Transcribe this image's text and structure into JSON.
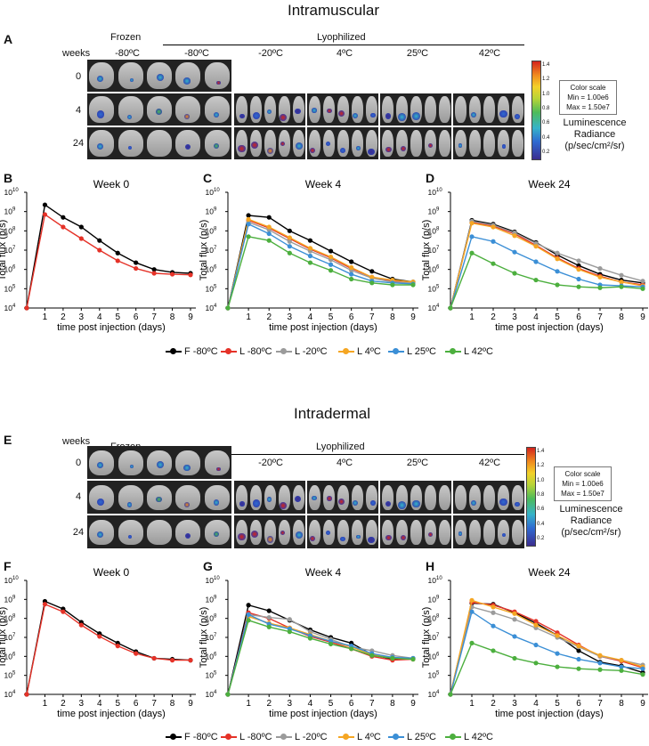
{
  "sections": {
    "top_title": "Intramuscular",
    "bottom_title": "Intradermal"
  },
  "panel_letters": {
    "A": "A",
    "B": "B",
    "C": "C",
    "D": "D",
    "E": "E",
    "F": "F",
    "G": "G",
    "H": "H"
  },
  "imaging": {
    "weeks_label": "weeks",
    "frozen_label": "Frozen",
    "lyophilized_label": "Lyophilized",
    "frozen_temp": "-80ºC",
    "lyo_temps": [
      "-80ºC",
      "-20ºC",
      "4ºC",
      "25ºC",
      "42ºC"
    ],
    "weeks": [
      "0",
      "4",
      "24"
    ],
    "colorbox_top": {
      "title": "Color scale",
      "min": "Min = 1.00e6",
      "max": "Max = 1.50e7"
    },
    "colorbox_bottom": {
      "title": "Color scale",
      "min": "Min = 1.00e6",
      "max": "Max = 1.50e7"
    },
    "colorbar_ticks": [
      "1.4",
      "1.2",
      "1.0",
      "0.8",
      "0.6",
      "0.4",
      "0.2"
    ],
    "lumi_label": "Luminescence",
    "radiance_label": "Radiance",
    "unit_label": "(p/sec/cm²/sr)"
  },
  "legend": {
    "top": [
      "F -80ºC",
      "L -80ºC",
      "L -20ºC",
      "L 4ºC",
      "L 25ºC",
      "L 42ºC"
    ],
    "bottom": [
      "F -80ºC",
      "L -80ºC",
      "L -20ºC",
      "L 4ºC",
      "L 25ºC",
      "L 42ºC"
    ]
  },
  "colors": {
    "F_-80": "#000000",
    "L_-80": "#e53228",
    "L_-20": "#9b9b9b",
    "L_4": "#f5a623",
    "L_25": "#3b8fd6",
    "L_42": "#4caf3e"
  },
  "chart_data": [
    {
      "id": "B",
      "type": "line",
      "title": "Week 0",
      "xlabel": "time post injection (days)",
      "ylabel": "Total flux (p/s)",
      "yscale": "log",
      "ylim_exp": [
        4,
        10
      ],
      "x": [
        0,
        1,
        2,
        3,
        4,
        5,
        6,
        7,
        8,
        9
      ],
      "x_ticks": [
        "1",
        "2",
        "3",
        "4",
        "5",
        "6",
        "7",
        "8",
        "9"
      ],
      "y_ticks": [
        "10",
        "10",
        "10",
        "10",
        "10",
        "10",
        "10"
      ],
      "y_tick_exps": [
        "4",
        "5",
        "6",
        "7",
        "8",
        "9",
        "10"
      ],
      "series": [
        {
          "name": "F -80ºC",
          "color": "#000000",
          "values_exp": [
            4,
            9.35,
            8.7,
            8.2,
            7.5,
            6.85,
            6.35,
            6.0,
            5.85,
            5.8
          ]
        },
        {
          "name": "L -80ºC",
          "color": "#e53228",
          "values_exp": [
            4,
            8.85,
            8.2,
            7.6,
            7.0,
            6.45,
            6.05,
            5.8,
            5.75,
            5.72
          ]
        }
      ]
    },
    {
      "id": "C",
      "type": "line",
      "title": "Week 4",
      "xlabel": "time post injection (days)",
      "ylabel": "Total flux (p/s)",
      "yscale": "log",
      "ylim_exp": [
        4,
        10
      ],
      "x": [
        0,
        1,
        2,
        3,
        4,
        5,
        6,
        7,
        8,
        9
      ],
      "x_ticks": [
        "1",
        "2",
        "3",
        "4",
        "5",
        "6",
        "7",
        "8",
        "9"
      ],
      "y_ticks": [
        "10",
        "10",
        "10",
        "10",
        "10",
        "10",
        "10"
      ],
      "y_tick_exps": [
        "4",
        "5",
        "6",
        "7",
        "8",
        "9",
        "10"
      ],
      "series": [
        {
          "name": "F -80ºC",
          "color": "#000000",
          "values_exp": [
            4,
            8.8,
            8.7,
            8.0,
            7.5,
            6.95,
            6.4,
            5.9,
            5.5,
            5.35
          ]
        },
        {
          "name": "L -80ºC",
          "color": "#e53228",
          "values_exp": [
            4,
            8.55,
            8.15,
            7.6,
            7.05,
            6.6,
            6.05,
            5.6,
            5.4,
            5.3
          ]
        },
        {
          "name": "L -20ºC",
          "color": "#9b9b9b",
          "values_exp": [
            4,
            8.45,
            8.05,
            7.45,
            6.95,
            6.5,
            5.95,
            5.55,
            5.35,
            5.3
          ]
        },
        {
          "name": "L 4ºC",
          "color": "#f5a623",
          "values_exp": [
            4,
            8.6,
            8.2,
            7.65,
            7.1,
            6.65,
            6.1,
            5.6,
            5.45,
            5.35
          ]
        },
        {
          "name": "L 25ºC",
          "color": "#3b8fd6",
          "values_exp": [
            4,
            8.35,
            7.85,
            7.2,
            6.7,
            6.25,
            5.75,
            5.4,
            5.3,
            5.25
          ]
        },
        {
          "name": "L 42ºC",
          "color": "#4caf3e",
          "values_exp": [
            4,
            7.7,
            7.5,
            6.85,
            6.35,
            5.95,
            5.5,
            5.3,
            5.2,
            5.2
          ]
        }
      ]
    },
    {
      "id": "D",
      "type": "line",
      "title": "Week 24",
      "xlabel": "time post injection (days)",
      "ylabel": "Total flux (p/s)",
      "yscale": "log",
      "ylim_exp": [
        4,
        10
      ],
      "x": [
        0,
        1,
        2,
        3,
        4,
        5,
        6,
        7,
        8,
        9
      ],
      "x_ticks": [
        "1",
        "2",
        "3",
        "4",
        "5",
        "6",
        "7",
        "8",
        "9"
      ],
      "y_ticks": [
        "10",
        "10",
        "10",
        "10",
        "10",
        "10",
        "10"
      ],
      "y_tick_exps": [
        "4",
        "5",
        "6",
        "7",
        "8",
        "9",
        "10"
      ],
      "series": [
        {
          "name": "F -80ºC",
          "color": "#000000",
          "values_exp": [
            4,
            8.55,
            8.35,
            7.95,
            7.4,
            6.75,
            6.2,
            5.75,
            5.45,
            5.3
          ]
        },
        {
          "name": "L -80ºC",
          "color": "#e53228",
          "values_exp": [
            4,
            8.45,
            8.25,
            7.85,
            7.25,
            6.6,
            6.05,
            5.65,
            5.35,
            5.2
          ]
        },
        {
          "name": "L -20ºC",
          "color": "#9b9b9b",
          "values_exp": [
            4,
            8.5,
            8.3,
            7.9,
            7.35,
            6.85,
            6.45,
            6.05,
            5.7,
            5.4
          ]
        },
        {
          "name": "L 4ºC",
          "color": "#f5a623",
          "values_exp": [
            4,
            8.4,
            8.2,
            7.75,
            7.2,
            6.55,
            6.0,
            5.6,
            5.35,
            5.15
          ]
        },
        {
          "name": "L 25ºC",
          "color": "#3b8fd6",
          "values_exp": [
            4,
            7.7,
            7.45,
            6.9,
            6.4,
            5.9,
            5.5,
            5.2,
            5.15,
            5.1
          ]
        },
        {
          "name": "L 42ºC",
          "color": "#4caf3e",
          "values_exp": [
            4,
            6.85,
            6.3,
            5.8,
            5.45,
            5.2,
            5.1,
            5.05,
            5.1,
            5.0
          ]
        }
      ]
    },
    {
      "id": "F",
      "type": "line",
      "title": "Week 0",
      "xlabel": "time post injection (days)",
      "ylabel": "Total flux (p/s)",
      "yscale": "log",
      "ylim_exp": [
        4,
        10
      ],
      "x": [
        0,
        1,
        2,
        3,
        4,
        5,
        6,
        7,
        8,
        9
      ],
      "x_ticks": [
        "1",
        "2",
        "3",
        "4",
        "5",
        "6",
        "7",
        "8",
        "9"
      ],
      "y_ticks": [
        "10",
        "10",
        "10",
        "10",
        "10",
        "10",
        "10"
      ],
      "y_tick_exps": [
        "4",
        "5",
        "6",
        "7",
        "8",
        "9",
        "10"
      ],
      "series": [
        {
          "name": "F -80ºC",
          "color": "#000000",
          "values_exp": [
            4,
            8.9,
            8.5,
            7.8,
            7.2,
            6.7,
            6.25,
            5.9,
            5.85,
            5.8
          ]
        },
        {
          "name": "L -80ºC",
          "color": "#e53228",
          "values_exp": [
            4,
            8.75,
            8.35,
            7.65,
            7.05,
            6.55,
            6.15,
            5.9,
            5.8,
            5.8
          ]
        }
      ]
    },
    {
      "id": "G",
      "type": "line",
      "title": "Week 4",
      "xlabel": "time post injection (days)",
      "ylabel": "Total flux (p/s)",
      "yscale": "log",
      "ylim_exp": [
        4,
        10
      ],
      "x": [
        0,
        1,
        2,
        3,
        4,
        5,
        6,
        7,
        8,
        9
      ],
      "x_ticks": [
        "1",
        "2",
        "3",
        "4",
        "5",
        "6",
        "7",
        "8",
        "9"
      ],
      "y_ticks": [
        "10",
        "10",
        "10",
        "10",
        "10",
        "10",
        "10"
      ],
      "y_tick_exps": [
        "4",
        "5",
        "6",
        "7",
        "8",
        "9",
        "10"
      ],
      "series": [
        {
          "name": "F -80ºC",
          "color": "#000000",
          "values_exp": [
            4,
            8.7,
            8.4,
            7.9,
            7.4,
            7.0,
            6.7,
            6.1,
            5.85,
            5.9
          ]
        },
        {
          "name": "L -80ºC",
          "color": "#e53228",
          "values_exp": [
            4,
            8.3,
            8.0,
            7.5,
            7.05,
            6.75,
            6.4,
            6.0,
            5.8,
            5.85
          ]
        },
        {
          "name": "L -20ºC",
          "color": "#9b9b9b",
          "values_exp": [
            4,
            8.2,
            8.05,
            7.95,
            7.3,
            6.9,
            6.5,
            6.3,
            6.05,
            5.9
          ]
        },
        {
          "name": "L 4ºC",
          "color": "#f5a623",
          "values_exp": [
            4,
            8.1,
            7.75,
            7.5,
            7.15,
            6.8,
            6.5,
            6.1,
            5.9,
            5.85
          ]
        },
        {
          "name": "L 25ºC",
          "color": "#3b8fd6",
          "values_exp": [
            4,
            8.2,
            7.7,
            7.45,
            7.1,
            6.8,
            6.55,
            6.15,
            5.95,
            5.9
          ]
        },
        {
          "name": "L 42ºC",
          "color": "#4caf3e",
          "values_exp": [
            4,
            7.9,
            7.55,
            7.3,
            6.95,
            6.65,
            6.4,
            6.05,
            5.9,
            5.85
          ]
        }
      ]
    },
    {
      "id": "H",
      "type": "line",
      "title": "Week 24",
      "xlabel": "time post injection (days)",
      "ylabel": "Total flux (p/s)",
      "yscale": "log",
      "ylim_exp": [
        4,
        10
      ],
      "x": [
        0,
        1,
        2,
        3,
        4,
        5,
        6,
        7,
        8,
        9
      ],
      "x_ticks": [
        "1",
        "2",
        "3",
        "4",
        "5",
        "6",
        "7",
        "8",
        "9"
      ],
      "y_ticks": [
        "10",
        "10",
        "10",
        "10",
        "10",
        "10",
        "10"
      ],
      "y_tick_exps": [
        "4",
        "5",
        "6",
        "7",
        "8",
        "9",
        "10"
      ],
      "series": [
        {
          "name": "F -80ºC",
          "color": "#000000",
          "values_exp": [
            4,
            8.8,
            8.75,
            8.3,
            7.75,
            7.1,
            6.3,
            5.7,
            5.5,
            5.15
          ]
        },
        {
          "name": "L -80ºC",
          "color": "#e53228",
          "values_exp": [
            4,
            8.85,
            8.7,
            8.35,
            7.85,
            7.25,
            6.6,
            6.0,
            5.75,
            5.4
          ]
        },
        {
          "name": "L -20ºC",
          "color": "#9b9b9b",
          "values_exp": [
            4,
            8.6,
            8.3,
            7.95,
            7.5,
            7.0,
            6.5,
            6.0,
            5.8,
            5.55
          ]
        },
        {
          "name": "L 4ºC",
          "color": "#f5a623",
          "values_exp": [
            4,
            8.95,
            8.6,
            8.25,
            7.65,
            7.1,
            6.55,
            6.05,
            5.8,
            5.45
          ]
        },
        {
          "name": "L 25ºC",
          "color": "#3b8fd6",
          "values_exp": [
            4,
            8.35,
            7.6,
            7.05,
            6.6,
            6.15,
            5.85,
            5.65,
            5.45,
            5.35
          ]
        },
        {
          "name": "L 42ºC",
          "color": "#4caf3e",
          "values_exp": [
            4,
            6.7,
            6.3,
            5.9,
            5.65,
            5.45,
            5.35,
            5.3,
            5.25,
            5.05
          ]
        }
      ]
    }
  ]
}
